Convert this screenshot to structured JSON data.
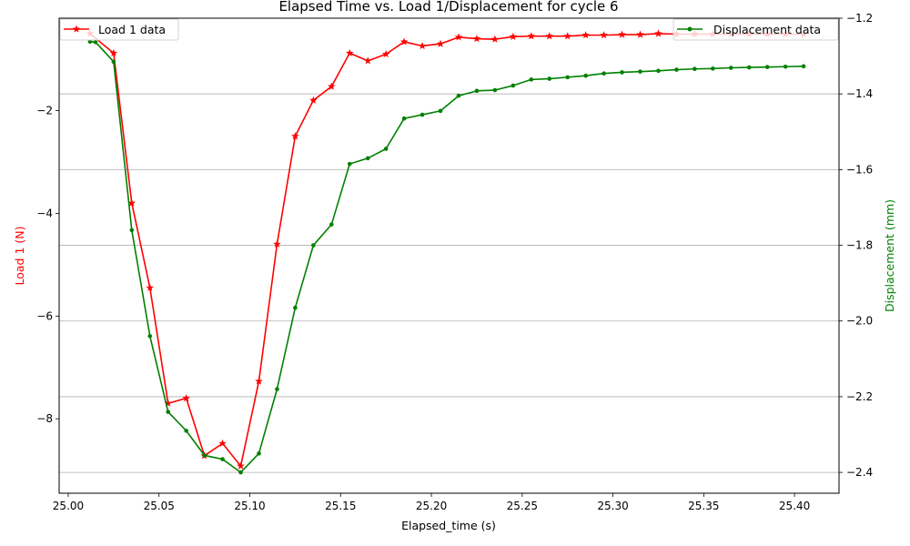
{
  "chart_data": {
    "type": "line",
    "title": "Elapsed Time vs. Load 1/Displacement for cycle 6",
    "xlabel": "Elapsed_time (s)",
    "ylabel_left": "Load 1 (N)",
    "ylabel_right": "Displacement (mm)",
    "xlim": [
      24.995,
      25.4245
    ],
    "ylim_left": [
      -9.45,
      -0.2
    ],
    "ylim_right": [
      -2.455,
      -1.2
    ],
    "x_ticks": [
      25.0,
      25.05,
      25.1,
      25.15,
      25.2,
      25.25,
      25.3,
      25.35,
      25.4
    ],
    "x_tick_labels": [
      "25.00",
      "25.05",
      "25.10",
      "25.15",
      "25.20",
      "25.25",
      "25.30",
      "25.35",
      "25.40"
    ],
    "y_ticks_left": [
      -8,
      -6,
      -4,
      -2
    ],
    "y_tick_labels_left": [
      "−8",
      "−6",
      "−4",
      "−2"
    ],
    "y_ticks_right": [
      -2.4,
      -2.2,
      -2.0,
      -1.8,
      -1.6,
      -1.4,
      -1.2
    ],
    "y_tick_labels_right": [
      "−2.4",
      "−2.2",
      "−2.0",
      "−1.8",
      "−1.6",
      "−1.4",
      "−1.2"
    ],
    "grid": "horizontal lines at right-axis ticks",
    "legend_left": "top-left",
    "legend_right": "top-right",
    "series": [
      {
        "name": "Load 1 data",
        "axis": "left",
        "color": "#ff0000",
        "marker": "star",
        "x": [
          25.012,
          25.025,
          25.035,
          25.045,
          25.055,
          25.065,
          25.075,
          25.085,
          25.095,
          25.105,
          25.115,
          25.125,
          25.135,
          25.145,
          25.155,
          25.165,
          25.175,
          25.185,
          25.195,
          25.205,
          25.215,
          25.225,
          25.235,
          25.245,
          25.255,
          25.265,
          25.275,
          25.285,
          25.295,
          25.305,
          25.315,
          25.325,
          25.335,
          25.345,
          25.355,
          25.365,
          25.375,
          25.385,
          25.395,
          25.405
        ],
        "y": [
          -0.5,
          -0.88,
          -3.8,
          -5.45,
          -7.7,
          -7.6,
          -8.72,
          -8.48,
          -8.92,
          -7.27,
          -4.6,
          -2.5,
          -1.8,
          -1.53,
          -0.88,
          -1.03,
          -0.9,
          -0.66,
          -0.74,
          -0.7,
          -0.57,
          -0.6,
          -0.61,
          -0.56,
          -0.55,
          -0.55,
          -0.55,
          -0.53,
          -0.53,
          -0.52,
          -0.52,
          -0.5,
          -0.51,
          -0.51,
          -0.51,
          -0.51,
          -0.51,
          -0.51,
          -0.51,
          -0.51
        ]
      },
      {
        "name": "Displacement data",
        "axis": "right",
        "color": "#008000",
        "marker": "dot",
        "x": [
          25.012,
          25.015,
          25.025,
          25.035,
          25.045,
          25.055,
          25.065,
          25.075,
          25.085,
          25.095,
          25.105,
          25.115,
          25.125,
          25.135,
          25.145,
          25.155,
          25.165,
          25.175,
          25.185,
          25.195,
          25.205,
          25.215,
          25.225,
          25.235,
          25.245,
          25.255,
          25.265,
          25.275,
          25.285,
          25.295,
          25.305,
          25.315,
          25.325,
          25.335,
          25.345,
          25.355,
          25.365,
          25.375,
          25.385,
          25.395,
          25.405
        ],
        "y": [
          -1.262,
          -1.263,
          -1.315,
          -1.76,
          -2.04,
          -2.24,
          -2.29,
          -2.355,
          -2.365,
          -2.4,
          -2.35,
          -2.18,
          -1.965,
          -1.8,
          -1.745,
          -1.585,
          -1.57,
          -1.545,
          -1.465,
          -1.455,
          -1.445,
          -1.405,
          -1.392,
          -1.39,
          -1.378,
          -1.362,
          -1.36,
          -1.356,
          -1.352,
          -1.346,
          -1.343,
          -1.341,
          -1.339,
          -1.336,
          -1.334,
          -1.333,
          -1.331,
          -1.33,
          -1.329,
          -1.328,
          -1.327
        ]
      }
    ]
  }
}
